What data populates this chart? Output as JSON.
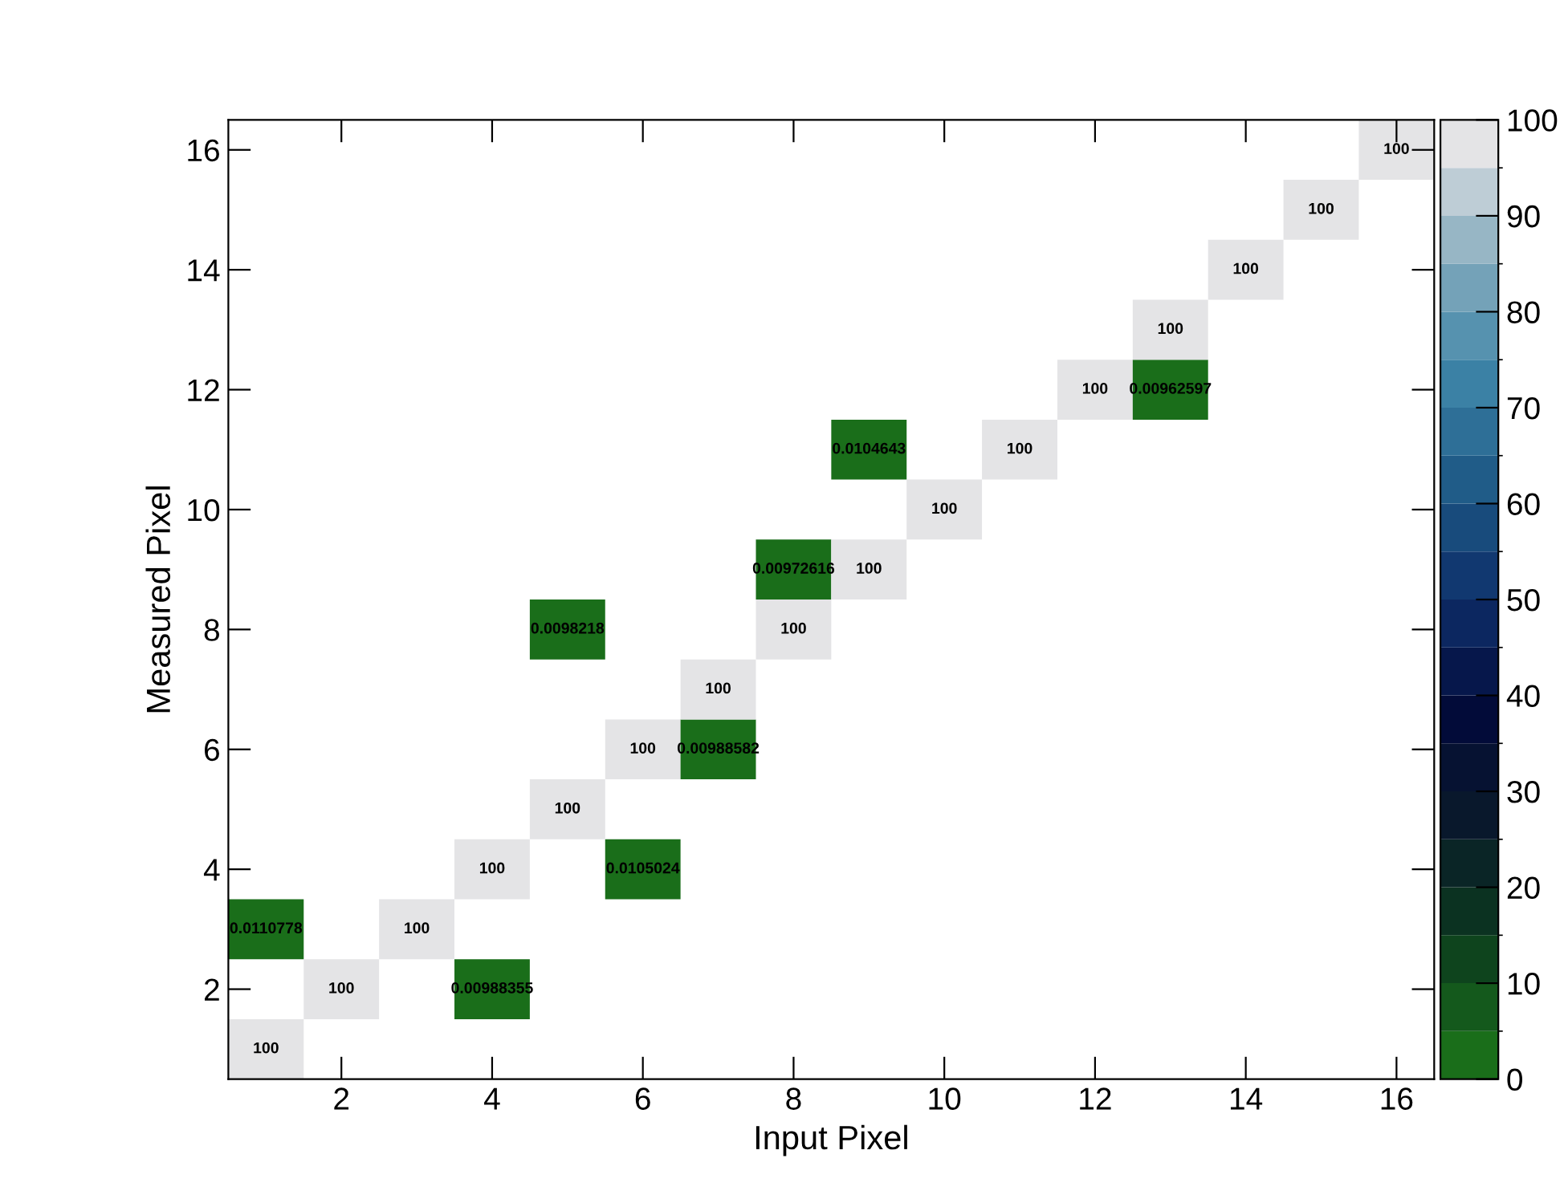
{
  "chart_data": {
    "type": "heatmap",
    "xlabel": "Input Pixel",
    "ylabel": "Measured Pixel",
    "categories": [
      null,
      "2",
      null,
      "4",
      null,
      "6",
      null,
      "8",
      null,
      "10",
      null,
      "12",
      null,
      "14",
      null,
      "16"
    ],
    "y_categories": [
      "16",
      null,
      "14",
      null,
      "12",
      null,
      "10",
      null,
      "8",
      null,
      "6",
      null,
      "4",
      null,
      "2",
      null
    ],
    "cells": [
      [
        null,
        null,
        null,
        null,
        null,
        null,
        null,
        null,
        null,
        null,
        null,
        null,
        null,
        null,
        null,
        100
      ],
      [
        null,
        null,
        null,
        null,
        null,
        null,
        null,
        null,
        null,
        null,
        null,
        null,
        null,
        null,
        100,
        null
      ],
      [
        null,
        null,
        null,
        null,
        null,
        null,
        null,
        null,
        null,
        null,
        null,
        null,
        null,
        100,
        null,
        null
      ],
      [
        null,
        null,
        null,
        null,
        null,
        null,
        null,
        null,
        null,
        null,
        null,
        null,
        100,
        null,
        null,
        null
      ],
      [
        null,
        null,
        null,
        null,
        null,
        null,
        null,
        null,
        null,
        null,
        null,
        100,
        0.00962597,
        null,
        null,
        null
      ],
      [
        null,
        null,
        null,
        null,
        null,
        null,
        null,
        null,
        0.0104643,
        null,
        100,
        null,
        null,
        null,
        null,
        null
      ],
      [
        null,
        null,
        null,
        null,
        null,
        null,
        null,
        null,
        null,
        100,
        null,
        null,
        null,
        null,
        null,
        null
      ],
      [
        null,
        null,
        null,
        null,
        null,
        null,
        null,
        0.00972616,
        100,
        null,
        null,
        null,
        null,
        null,
        null,
        null
      ],
      [
        null,
        null,
        null,
        null,
        0.0098218,
        null,
        null,
        100,
        null,
        null,
        null,
        null,
        null,
        null,
        null,
        null
      ],
      [
        null,
        null,
        null,
        null,
        null,
        null,
        100,
        null,
        null,
        null,
        null,
        null,
        null,
        null,
        null,
        null
      ],
      [
        null,
        null,
        null,
        null,
        null,
        100,
        0.00988582,
        null,
        null,
        null,
        null,
        null,
        null,
        null,
        null,
        null
      ],
      [
        null,
        null,
        null,
        null,
        100,
        null,
        null,
        null,
        null,
        null,
        null,
        null,
        null,
        null,
        null,
        null
      ],
      [
        null,
        null,
        null,
        100,
        null,
        0.0105024,
        null,
        null,
        null,
        null,
        null,
        null,
        null,
        null,
        null,
        null
      ],
      [
        0.0110778,
        null,
        100,
        null,
        null,
        null,
        null,
        null,
        null,
        null,
        null,
        null,
        null,
        null,
        null,
        null
      ],
      [
        null,
        100,
        null,
        0.00988355,
        null,
        null,
        null,
        null,
        null,
        null,
        null,
        null,
        null,
        null,
        null,
        null
      ],
      [
        100,
        null,
        null,
        null,
        null,
        null,
        null,
        null,
        null,
        null,
        null,
        null,
        null,
        null,
        null,
        null
      ]
    ],
    "clim": [
      0,
      100
    ],
    "cticks": [
      0,
      10,
      20,
      30,
      40,
      50,
      60,
      70,
      80,
      90,
      100
    ],
    "data_labels": true,
    "grid": false
  }
}
